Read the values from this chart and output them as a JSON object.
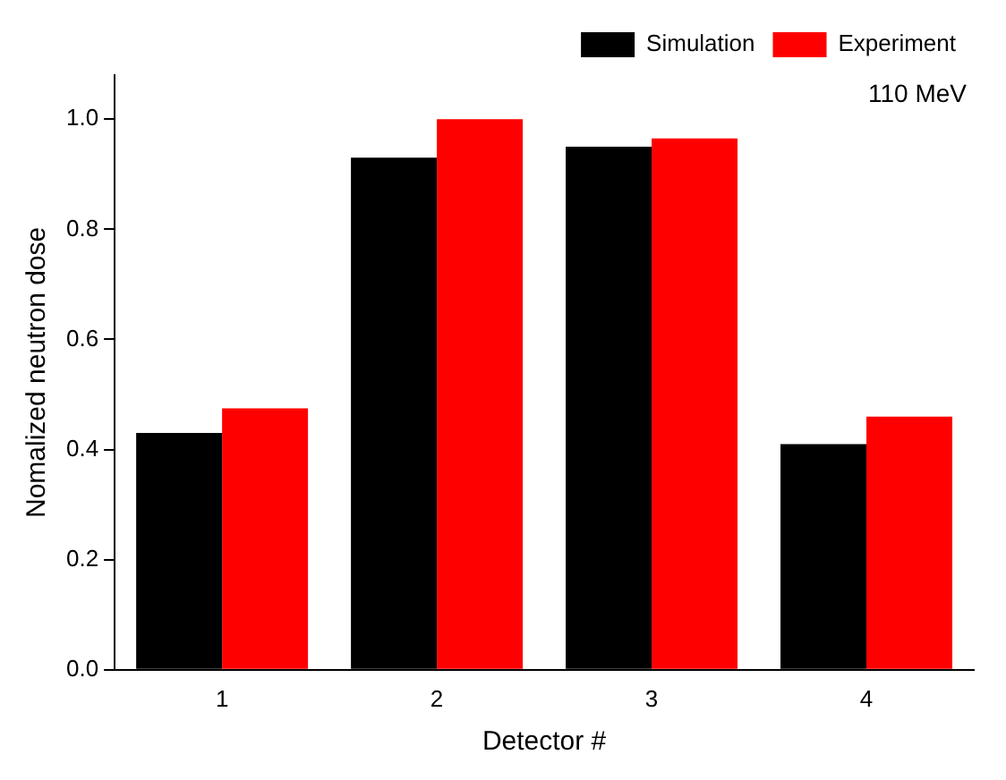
{
  "chart_data": {
    "type": "bar",
    "xlabel": "Detector #",
    "ylabel": "Nomalized neutron dose",
    "categories": [
      "1",
      "2",
      "3",
      "4"
    ],
    "series": [
      {
        "name": "Simulation",
        "color": "#000000",
        "values": [
          0.43,
          0.93,
          0.95,
          0.41
        ]
      },
      {
        "name": "Experiment",
        "color": "#ff0000",
        "values": [
          0.475,
          1.0,
          0.965,
          0.46
        ]
      }
    ],
    "ylim": [
      0,
      1.08
    ],
    "yticks": [
      {
        "value": 0,
        "label": "0.0"
      },
      {
        "value": 0.2,
        "label": "0.2"
      },
      {
        "value": 0.4,
        "label": "0.4"
      },
      {
        "value": 0.6,
        "label": "0.6"
      },
      {
        "value": 0.8,
        "label": "0.8"
      },
      {
        "value": 1.0,
        "label": "1.0"
      }
    ],
    "grid": false,
    "legend": "top right",
    "annotations": [
      "110 MeV"
    ]
  }
}
